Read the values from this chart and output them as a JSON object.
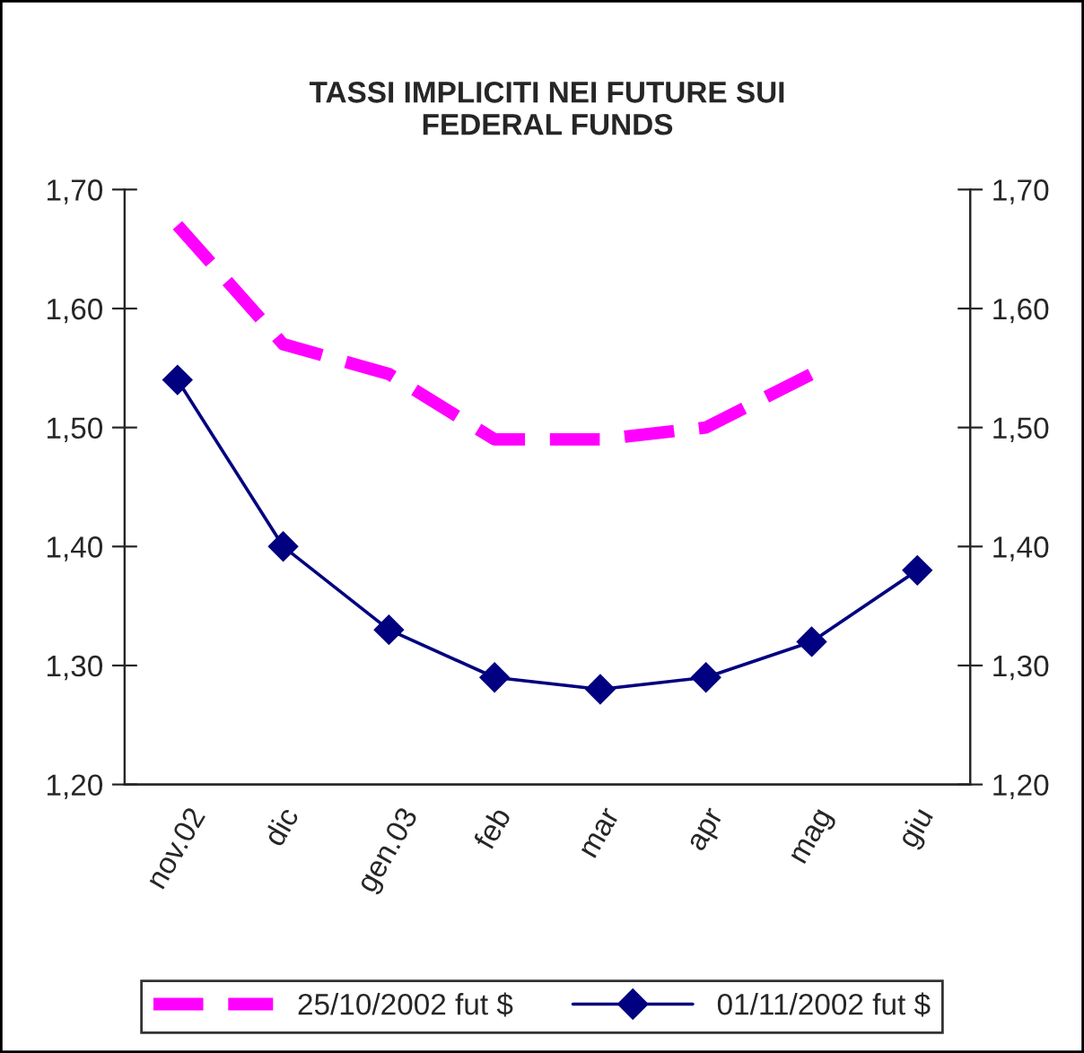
{
  "chart_data": {
    "type": "line",
    "title": "TASSI IMPLICITI NEI FUTURE SUI\nFEDERAL FUNDS",
    "categories": [
      "nov.02",
      "dic",
      "gen.03",
      "feb",
      "mar",
      "apr",
      "mag",
      "giu"
    ],
    "series": [
      {
        "name": "25/10/2002 fut $",
        "color": "#ff00ff",
        "line_style": "dashed",
        "marker": "none",
        "values": [
          1.67,
          1.57,
          1.545,
          1.49,
          1.49,
          1.5,
          1.545,
          null
        ]
      },
      {
        "name": "01/11/2002 fut $",
        "color": "#000080",
        "line_style": "solid",
        "marker": "diamond",
        "values": [
          1.54,
          1.4,
          1.33,
          1.29,
          1.28,
          1.29,
          1.32,
          1.38
        ]
      }
    ],
    "ylim": [
      1.2,
      1.7
    ],
    "yticks": [
      {
        "value": 1.2,
        "label": "1,20"
      },
      {
        "value": 1.3,
        "label": "1,30"
      },
      {
        "value": 1.4,
        "label": "1,40"
      },
      {
        "value": 1.5,
        "label": "1,50"
      },
      {
        "value": 1.6,
        "label": "1,60"
      },
      {
        "value": 1.7,
        "label": "1,70"
      }
    ],
    "y2lim": [
      1.2,
      1.7
    ],
    "y2ticks": [
      {
        "value": 1.2,
        "label": "1,20"
      },
      {
        "value": 1.3,
        "label": "1,30"
      },
      {
        "value": 1.4,
        "label": "1,40"
      },
      {
        "value": 1.5,
        "label": "1,50"
      },
      {
        "value": 1.6,
        "label": "1,60"
      },
      {
        "value": 1.7,
        "label": "1,70"
      }
    ],
    "grid": false,
    "legend": "bottom"
  }
}
